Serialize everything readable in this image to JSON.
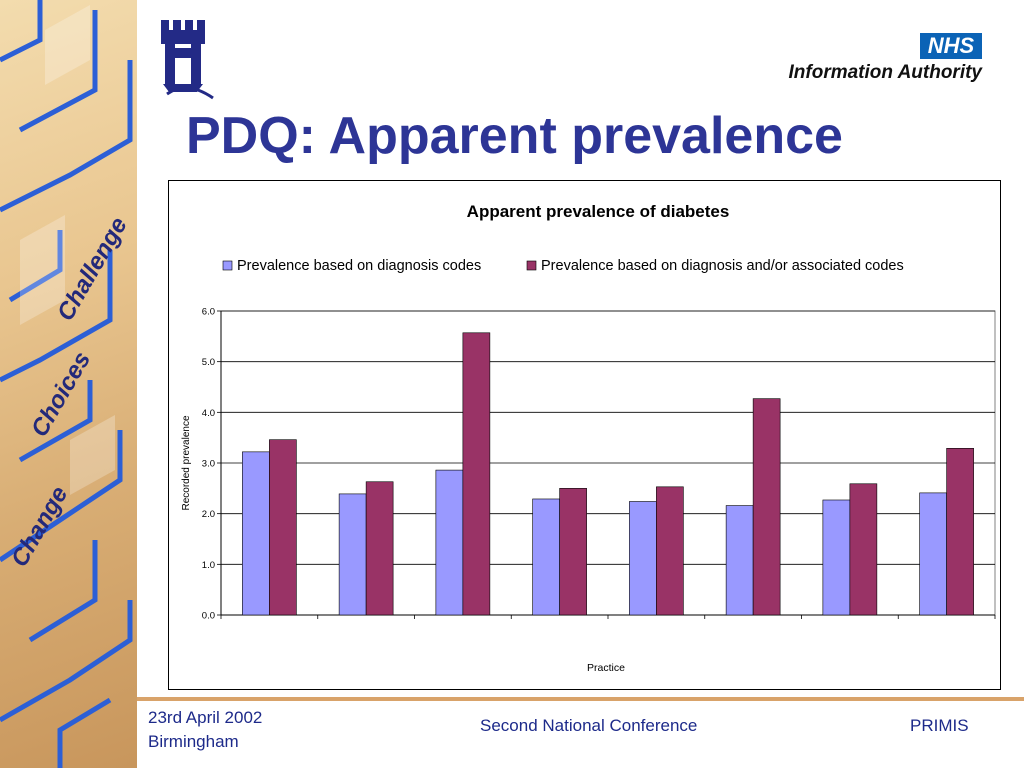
{
  "side_panel": {
    "words": [
      "Challenge",
      "Choices",
      "Change"
    ]
  },
  "logo": {
    "name": "university-crest-icon"
  },
  "nhs": {
    "badge": "NHS",
    "subtitle": "Information Authority"
  },
  "slide": {
    "title": "PDQ:  Apparent prevalence"
  },
  "chart_data": {
    "type": "bar",
    "title": "Apparent prevalence of diabetes",
    "xlabel": "Practice",
    "ylabel": "Recorded prevalence",
    "ylim": [
      0,
      6
    ],
    "yticks": [
      "0.0",
      "1.0",
      "2.0",
      "3.0",
      "4.0",
      "5.0",
      "6.0"
    ],
    "categories": [
      "",
      "",
      "",
      "",
      "",
      "",
      "",
      ""
    ],
    "legend_position": "top",
    "grid": true,
    "series": [
      {
        "name": "Prevalence based on diagnosis codes",
        "color": "#9999ff",
        "values": [
          3.22,
          2.39,
          2.86,
          2.29,
          2.24,
          2.16,
          2.27,
          2.41
        ]
      },
      {
        "name": "Prevalence based on diagnosis and/or associated codes",
        "color": "#993366",
        "values": [
          3.46,
          2.63,
          5.57,
          2.5,
          2.53,
          4.27,
          2.59,
          3.29
        ]
      }
    ]
  },
  "footer": {
    "date": "23rd April 2002",
    "place": "Birmingham",
    "event": "Second National Conference",
    "org": "PRIMIS"
  }
}
